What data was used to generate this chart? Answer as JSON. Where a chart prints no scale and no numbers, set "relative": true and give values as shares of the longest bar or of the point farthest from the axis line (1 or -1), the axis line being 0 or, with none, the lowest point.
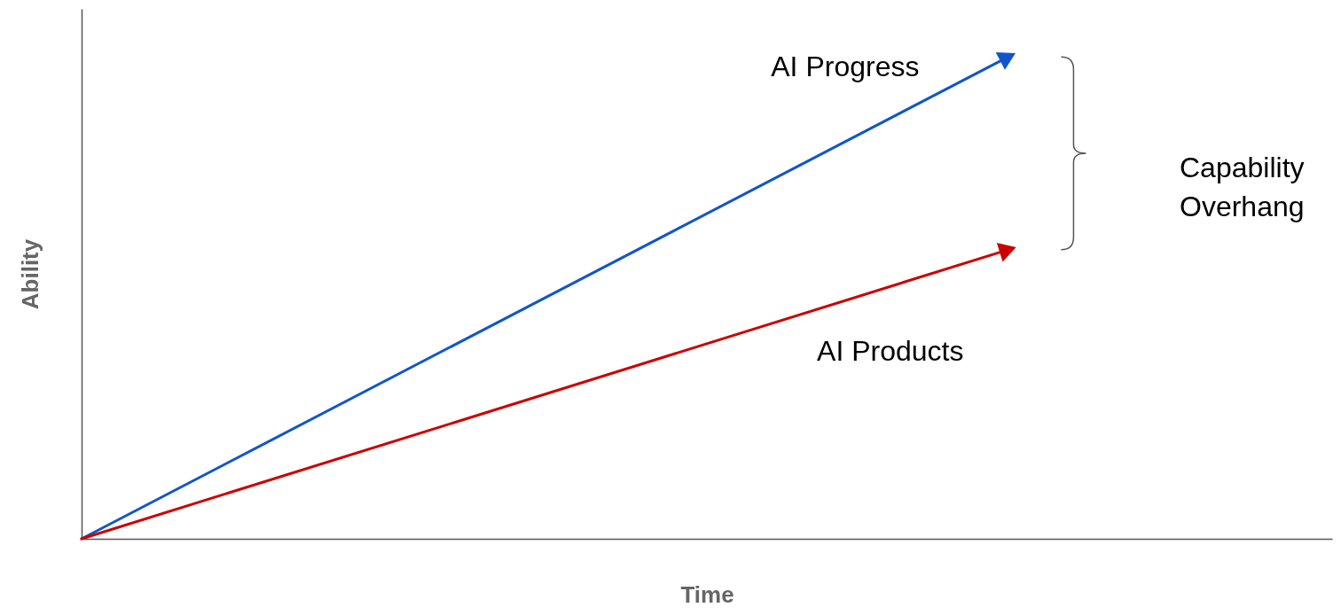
{
  "chart_data": {
    "type": "line",
    "relative": true,
    "xlabel": "Time",
    "ylabel": "Ability",
    "categories": [
      null,
      null
    ],
    "grid": false,
    "series": [
      {
        "name": "AI Progress",
        "color": "#1155cc",
        "values": [
          0,
          1
        ]
      },
      {
        "name": "AI Products",
        "color": "#cc0000",
        "values": [
          0,
          0.6
        ]
      }
    ],
    "annotations": [
      "Capability Overhang"
    ]
  }
}
